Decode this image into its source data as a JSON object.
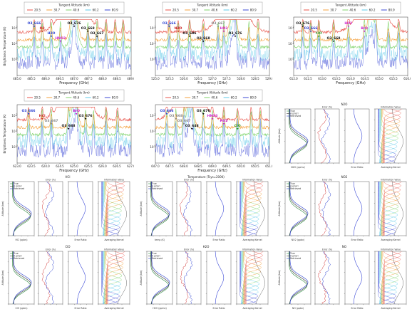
{
  "legend": {
    "title": "Tangent Altitude (km)",
    "entries": [
      {
        "label": "20.5",
        "color": "#e8534a"
      },
      {
        "label": "30.7",
        "color": "#f4a03c"
      },
      {
        "label": "40.6",
        "color": "#7fd36a"
      },
      {
        "label": "60.2",
        "color": "#5bc9e8"
      },
      {
        "label": "80.9",
        "color": "#3b49d6"
      }
    ]
  },
  "chart_data": [
    {
      "type": "line",
      "panel": "spectrum-1",
      "xlim": [
        485.0,
        489.0
      ],
      "ylim_log10": [
        -1,
        2.7
      ],
      "xticks": [
        "485.0",
        "485.5",
        "486.0",
        "486.5",
        "487.0",
        "487.5",
        "488.0",
        "488.5",
        "489.0"
      ],
      "xlabel": "Frequency (GHz)",
      "ylabel": "Brightness Temperature (K)",
      "labels": [
        {
          "text": "O3_666",
          "color": "#2a3fd0"
        },
        {
          "text": "O2",
          "color": "#cc2222"
        },
        {
          "text": "H2O",
          "color": "#2a3fd0"
        },
        {
          "text": "HNO3",
          "color": "#cc22cc"
        },
        {
          "text": "O3_676",
          "color": "#111111"
        },
        {
          "text": "O3_668",
          "color": "#111111"
        },
        {
          "text": "O3_667",
          "color": "#111111"
        }
      ]
    },
    {
      "type": "line",
      "panel": "spectrum-2",
      "xlim": [
        525.0,
        529.0
      ],
      "ylim_log10": [
        -1,
        2.7
      ],
      "xticks": [
        "525.0",
        "525.5",
        "526.0",
        "526.5",
        "527.0",
        "527.5",
        "528.0",
        "528.5",
        "529.0"
      ],
      "xlabel": "Frequency (GHz)",
      "ylabel": "",
      "labels": [
        {
          "text": "O3_666",
          "color": "#2a3fd0"
        },
        {
          "text": "N2O",
          "color": "#cc2222"
        },
        {
          "text": "O3_686",
          "color": "#111111"
        },
        {
          "text": "O3_668",
          "color": "#111111"
        },
        {
          "text": "O3_667",
          "color": "#888888"
        },
        {
          "text": "HO2",
          "color": "#cc22cc"
        },
        {
          "text": "O3_676",
          "color": "#111111"
        }
      ]
    },
    {
      "type": "line",
      "panel": "spectrum-3",
      "xlim": [
        612.0,
        616.0
      ],
      "ylim_log10": [
        -1,
        2.7
      ],
      "xticks": [
        "612.0",
        "612.5",
        "613.0",
        "613.5",
        "614.0",
        "614.5",
        "615.0",
        "615.5",
        "616.0"
      ],
      "xlabel": "Frequency (GHz)",
      "ylabel": "",
      "labels": [
        {
          "text": "O3_676",
          "color": "#111111"
        },
        {
          "text": "O3_666",
          "color": "#2a3fd0"
        },
        {
          "text": "ClO",
          "color": "#2a9a2a"
        },
        {
          "text": "O3_668",
          "color": "#111111"
        },
        {
          "text": "HO2",
          "color": "#cc22cc"
        },
        {
          "text": "BrO",
          "color": "#cc22cc"
        }
      ]
    },
    {
      "type": "line",
      "panel": "spectrum-4",
      "xlim": [
        623.0,
        627.0
      ],
      "ylim_log10": [
        -1,
        2.7
      ],
      "xticks": [
        "623.0",
        "623.5",
        "624.0",
        "624.5",
        "625.0",
        "625.5",
        "626.0",
        "626.5",
        "627.0"
      ],
      "xlabel": "Frequency (GHz)",
      "ylabel": "Brightness Temperature (K)",
      "labels": [
        {
          "text": "O3_666",
          "color": "#2a3fd0"
        },
        {
          "text": "HCl",
          "color": "#cc2222"
        },
        {
          "text": "O3_667",
          "color": "#888888"
        },
        {
          "text": "O3_668",
          "color": "#111111"
        },
        {
          "text": "BrO",
          "color": "#cc22cc"
        },
        {
          "text": "O3_676",
          "color": "#111111"
        }
      ]
    },
    {
      "type": "line",
      "panel": "spectrum-5",
      "xlim": [
        647.0,
        651.0
      ],
      "ylim_log10": [
        -1,
        2.7
      ],
      "xticks": [
        "647.0",
        "647.5",
        "648.0",
        "648.5",
        "649.0",
        "649.5",
        "650.0",
        "650.5",
        "651.0"
      ],
      "xlabel": "Frequency (GHz)",
      "ylabel": "",
      "labels": [
        {
          "text": "O3_666",
          "color": "#2a3fd0"
        },
        {
          "text": "O3_668",
          "color": "#888888"
        },
        {
          "text": "O3_667",
          "color": "#888888"
        },
        {
          "text": "O3_648",
          "color": "#111111"
        },
        {
          "text": "O3_676",
          "color": "#111111"
        },
        {
          "text": "HNO3",
          "color": "#cc22cc"
        },
        {
          "text": "HO2",
          "color": "#cc22cc"
        },
        {
          "text": "ClO",
          "color": "#2a9a2a"
        }
      ]
    }
  ],
  "retrievals": [
    {
      "id": "n2o",
      "title": "N2O",
      "xlabel": "N2O (ppmv)"
    },
    {
      "id": "hcl",
      "title": "HCl",
      "xlabel": "HCl (ppbv)"
    },
    {
      "id": "temp",
      "title": "Temperature (Tsys=200K)",
      "xlabel": "temp (K)"
    },
    {
      "id": "no2",
      "title": "NO2",
      "xlabel": "NO2 (ppbv)"
    },
    {
      "id": "clo",
      "title": "ClO",
      "xlabel": "ClO (ppbv)"
    },
    {
      "id": "h2o",
      "title": "H2O",
      "xlabel": "H2O (ppmv)"
    },
    {
      "id": "no",
      "title": "NO",
      "xlabel": "NO (ppbv)"
    }
  ],
  "retrieval_text": {
    "info_title": "Information Value",
    "error_title": "Error (%)",
    "error_ratio": "Error Ratio",
    "avg_kernel": "Averaging Kernel",
    "altitude": "Altitude (km)",
    "legend_true": "True",
    "legend_apriori": "A priori",
    "legend_retrieved": "Retrieved"
  }
}
